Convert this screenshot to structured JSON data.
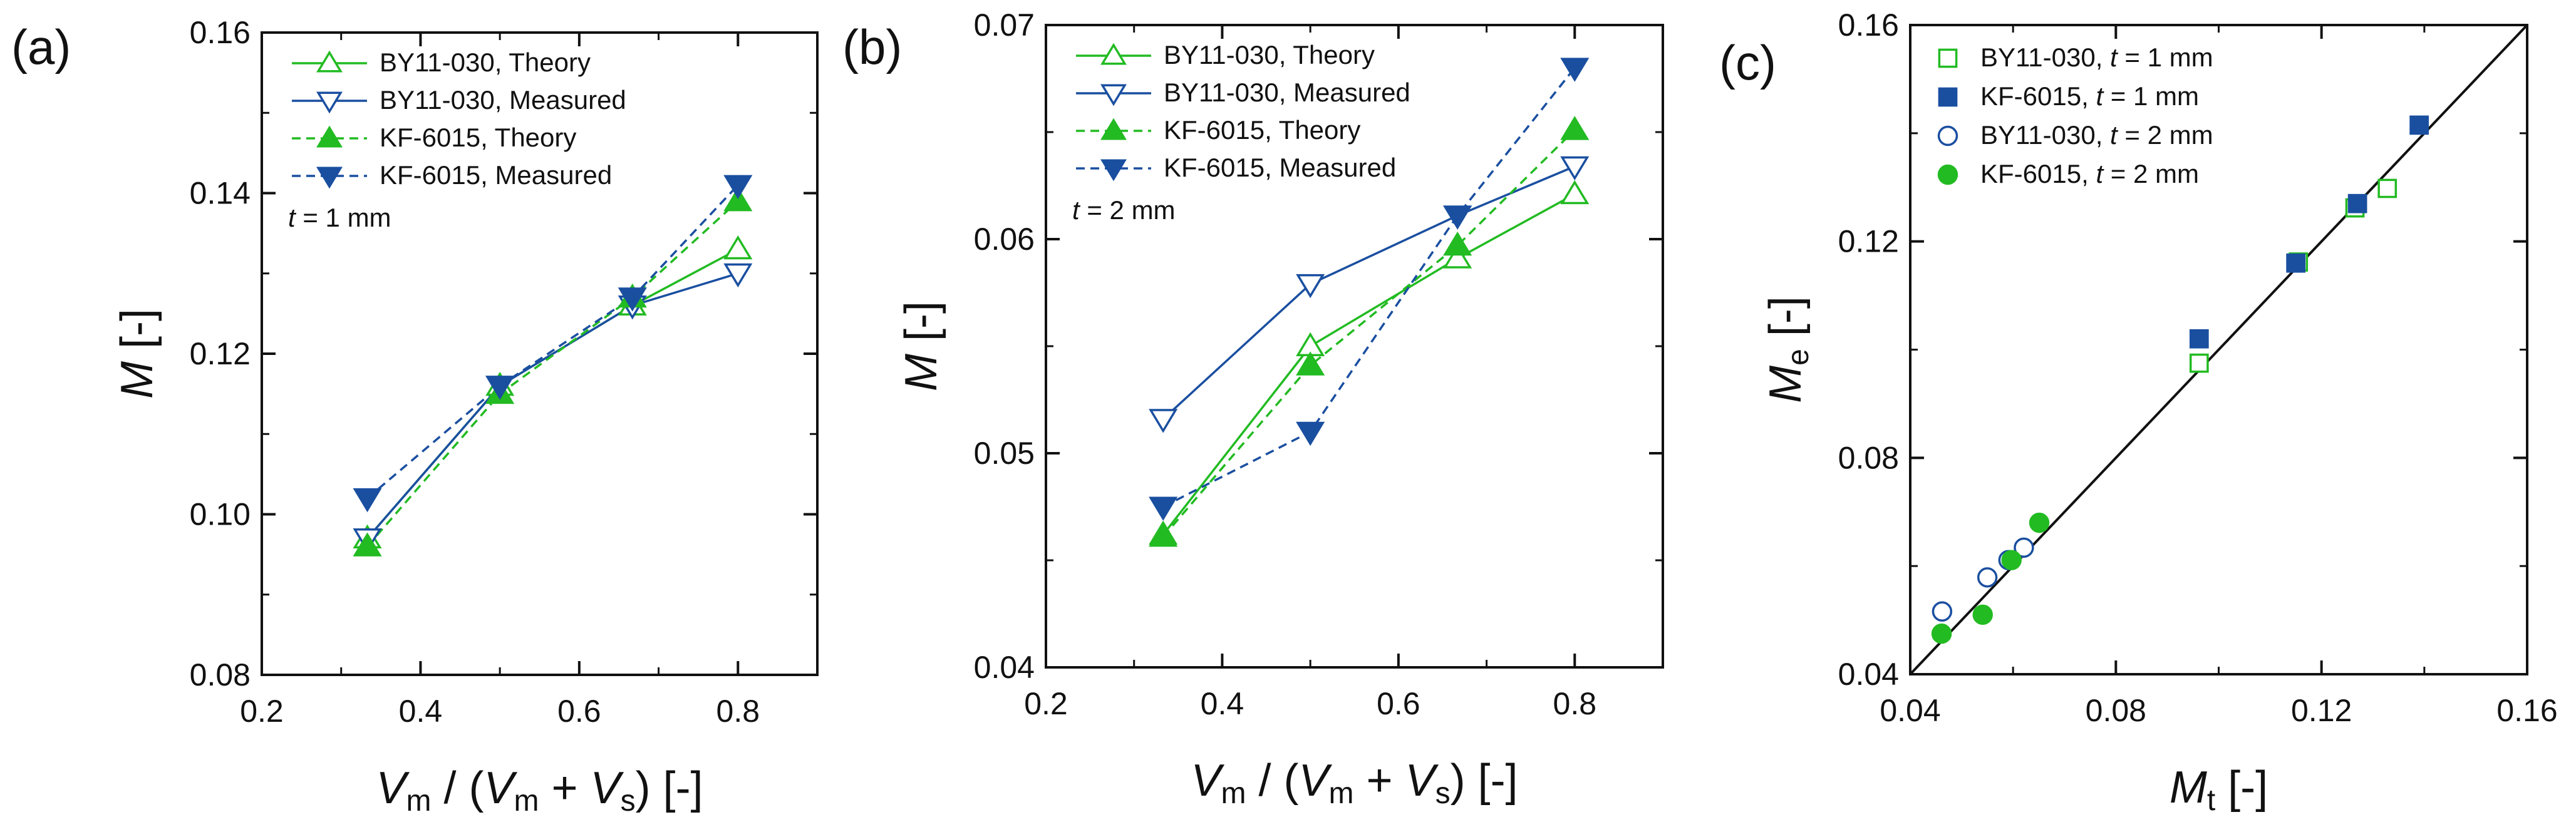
{
  "chart_data": [
    {
      "panel": "(a)",
      "type": "line",
      "xlabel": "V_m / (V_m + V_s) [-]",
      "ylabel": "M [-]",
      "xlim": [
        0.2,
        0.9
      ],
      "ylim": [
        0.08,
        0.16
      ],
      "xticks": [
        "0.2",
        "0.4",
        "0.6",
        "0.8"
      ],
      "yticks": [
        "0.08",
        "0.10",
        "0.12",
        "0.14",
        "0.16"
      ],
      "grid": false,
      "legend": "top-left",
      "annotation": {
        "var": "t",
        "rest": " = 1 mm"
      },
      "x": [
        0.333,
        0.5,
        0.667,
        0.8
      ],
      "series": [
        {
          "name": "BY11-030, Theory",
          "color": "#22bb22",
          "dash": "solid",
          "marker": "triangle-up",
          "filled": false,
          "values": [
            0.097,
            0.116,
            0.126,
            0.133
          ]
        },
        {
          "name": "BY11-030, Measured",
          "color": "#1a4fa0",
          "dash": "solid",
          "marker": "triangle-down",
          "filled": false,
          "values": [
            0.097,
            0.116,
            0.126,
            0.13
          ]
        },
        {
          "name": "KF-6015, Theory",
          "color": "#22bb22",
          "dash": "dashed",
          "marker": "triangle-up",
          "filled": true,
          "values": [
            0.096,
            0.115,
            0.127,
            0.139
          ]
        },
        {
          "name": "KF-6015, Measured",
          "color": "#1a4fa0",
          "dash": "dashed",
          "marker": "triangle-down",
          "filled": true,
          "values": [
            0.102,
            0.116,
            0.127,
            0.141
          ]
        }
      ]
    },
    {
      "panel": "(b)",
      "type": "line",
      "xlabel": "V_m / (V_m + V_s) [-]",
      "ylabel": "M [-]",
      "xlim": [
        0.2,
        0.9
      ],
      "ylim": [
        0.04,
        0.07
      ],
      "xticks": [
        "0.2",
        "0.4",
        "0.6",
        "0.8"
      ],
      "yticks": [
        "0.04",
        "0.05",
        "0.06",
        "0.07"
      ],
      "grid": false,
      "legend": "top-left",
      "annotation": {
        "var": "t",
        "rest": " = 2 mm"
      },
      "x": [
        0.333,
        0.5,
        0.667,
        0.8
      ],
      "series": [
        {
          "name": "BY11-030, Theory",
          "color": "#22bb22",
          "dash": "solid",
          "marker": "triangle-up",
          "filled": false,
          "values": [
            0.0462,
            0.055,
            0.0591,
            0.0621
          ]
        },
        {
          "name": "BY11-030, Measured",
          "color": "#1a4fa0",
          "dash": "solid",
          "marker": "triangle-down",
          "filled": false,
          "values": [
            0.0516,
            0.0579,
            0.0611,
            0.0634
          ]
        },
        {
          "name": "KF-6015, Theory",
          "color": "#22bb22",
          "dash": "dashed",
          "marker": "triangle-up",
          "filled": true,
          "values": [
            0.0461,
            0.0541,
            0.0597,
            0.0651
          ]
        },
        {
          "name": "KF-6015, Measured",
          "color": "#1a4fa0",
          "dash": "dashed",
          "marker": "triangle-down",
          "filled": true,
          "values": [
            0.0475,
            0.051,
            0.0611,
            0.068
          ]
        }
      ]
    },
    {
      "panel": "(c)",
      "type": "scatter",
      "xlabel": "M_t [-]",
      "ylabel": "M_e [-]",
      "xlim": [
        0.04,
        0.16
      ],
      "ylim": [
        0.04,
        0.16
      ],
      "xticks": [
        "0.04",
        "0.08",
        "0.12",
        "0.16"
      ],
      "yticks": [
        "0.04",
        "0.08",
        "0.12",
        "0.16"
      ],
      "grid": false,
      "legend": "top-left",
      "reference_line": "y = x",
      "series": [
        {
          "name": "BY11-030, t = 1 mm",
          "color": "#22bb22",
          "marker": "square",
          "filled": false,
          "points": [
            [
              0.0962,
              0.0975
            ],
            [
              0.1155,
              0.1162
            ],
            [
              0.1265,
              0.1262
            ],
            [
              0.1328,
              0.1298
            ]
          ]
        },
        {
          "name": "KF-6015, t = 1 mm",
          "color": "#1a4fa0",
          "marker": "square",
          "filled": true,
          "points": [
            [
              0.0962,
              0.102
            ],
            [
              0.115,
              0.116
            ],
            [
              0.127,
              0.127
            ],
            [
              0.139,
              0.1415
            ]
          ]
        },
        {
          "name": "BY11-030, t = 2 mm",
          "color": "#1a4fa0",
          "marker": "circle",
          "filled": false,
          "points": [
            [
              0.0462,
              0.0516
            ],
            [
              0.055,
              0.0579
            ],
            [
              0.0591,
              0.0611
            ],
            [
              0.0621,
              0.0634
            ]
          ]
        },
        {
          "name": "KF-6015, t = 2 mm",
          "color": "#22bb22",
          "marker": "circle",
          "filled": true,
          "points": [
            [
              0.0461,
              0.0475
            ],
            [
              0.0541,
              0.051
            ],
            [
              0.0597,
              0.0611
            ],
            [
              0.0651,
              0.068
            ]
          ]
        }
      ]
    }
  ]
}
